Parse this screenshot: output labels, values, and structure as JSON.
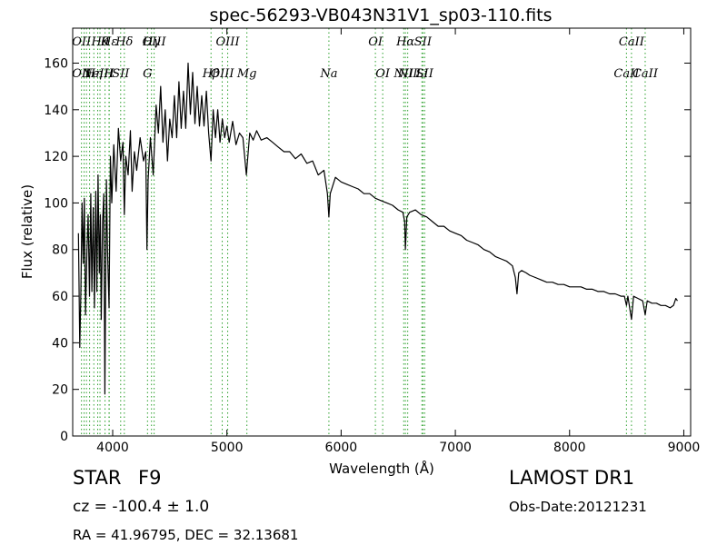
{
  "chart_data": {
    "type": "line",
    "title": "spec-56293-VB043N31V1_sp03-110.fits",
    "xlabel": "Wavelength (Å)",
    "ylabel": "Flux (relative)",
    "xlim": [
      3650,
      9060
    ],
    "ylim": [
      0,
      175
    ],
    "xticks": [
      4000,
      5000,
      6000,
      7000,
      8000,
      9000
    ],
    "yticks": [
      0,
      20,
      40,
      60,
      80,
      100,
      120,
      140,
      160
    ],
    "grid": false,
    "line_color": "#000000",
    "marker_color": "#2ca02c",
    "series": [
      {
        "points": [
          [
            3700,
            87
          ],
          [
            3712,
            38
          ],
          [
            3722,
            62
          ],
          [
            3732,
            100
          ],
          [
            3742,
            74
          ],
          [
            3752,
            102
          ],
          [
            3762,
            52
          ],
          [
            3775,
            80
          ],
          [
            3785,
            95
          ],
          [
            3797,
            60
          ],
          [
            3808,
            104
          ],
          [
            3818,
            62
          ],
          [
            3830,
            98
          ],
          [
            3840,
            55
          ],
          [
            3852,
            105
          ],
          [
            3862,
            62
          ],
          [
            3872,
            112
          ],
          [
            3883,
            70
          ],
          [
            3892,
            95
          ],
          [
            3900,
            50
          ],
          [
            3912,
            92
          ],
          [
            3922,
            104
          ],
          [
            3932,
            18
          ],
          [
            3945,
            110
          ],
          [
            3955,
            80
          ],
          [
            3968,
            55
          ],
          [
            3980,
            120
          ],
          [
            3992,
            100
          ],
          [
            4010,
            125
          ],
          [
            4030,
            105
          ],
          [
            4050,
            132
          ],
          [
            4070,
            118
          ],
          [
            4090,
            126
          ],
          [
            4102,
            95
          ],
          [
            4115,
            120
          ],
          [
            4135,
            112
          ],
          [
            4155,
            131
          ],
          [
            4170,
            105
          ],
          [
            4190,
            122
          ],
          [
            4210,
            114
          ],
          [
            4240,
            128
          ],
          [
            4270,
            118
          ],
          [
            4290,
            122
          ],
          [
            4300,
            80
          ],
          [
            4310,
            110
          ],
          [
            4330,
            128
          ],
          [
            4355,
            112
          ],
          [
            4380,
            142
          ],
          [
            4400,
            130
          ],
          [
            4420,
            150
          ],
          [
            4440,
            126
          ],
          [
            4460,
            140
          ],
          [
            4480,
            118
          ],
          [
            4500,
            136
          ],
          [
            4520,
            128
          ],
          [
            4540,
            146
          ],
          [
            4560,
            128
          ],
          [
            4580,
            152
          ],
          [
            4600,
            132
          ],
          [
            4620,
            148
          ],
          [
            4640,
            132
          ],
          [
            4660,
            160
          ],
          [
            4680,
            138
          ],
          [
            4700,
            156
          ],
          [
            4720,
            134
          ],
          [
            4740,
            150
          ],
          [
            4760,
            133
          ],
          [
            4780,
            146
          ],
          [
            4800,
            133
          ],
          [
            4820,
            148
          ],
          [
            4840,
            130
          ],
          [
            4861,
            118
          ],
          [
            4880,
            140
          ],
          [
            4900,
            128
          ],
          [
            4920,
            140
          ],
          [
            4940,
            126
          ],
          [
            4960,
            136
          ],
          [
            4980,
            128
          ],
          [
            5000,
            133
          ],
          [
            5020,
            126
          ],
          [
            5050,
            135
          ],
          [
            5080,
            125
          ],
          [
            5110,
            130
          ],
          [
            5140,
            128
          ],
          [
            5170,
            112
          ],
          [
            5200,
            130
          ],
          [
            5230,
            127
          ],
          [
            5260,
            131
          ],
          [
            5300,
            127
          ],
          [
            5350,
            128
          ],
          [
            5400,
            126
          ],
          [
            5450,
            124
          ],
          [
            5500,
            122
          ],
          [
            5550,
            122
          ],
          [
            5600,
            119
          ],
          [
            5650,
            121
          ],
          [
            5700,
            117
          ],
          [
            5750,
            118
          ],
          [
            5800,
            112
          ],
          [
            5850,
            114
          ],
          [
            5880,
            104
          ],
          [
            5893,
            94
          ],
          [
            5905,
            104
          ],
          [
            5950,
            111
          ],
          [
            6000,
            109
          ],
          [
            6050,
            108
          ],
          [
            6100,
            107
          ],
          [
            6150,
            106
          ],
          [
            6200,
            104
          ],
          [
            6250,
            104
          ],
          [
            6300,
            102
          ],
          [
            6350,
            101
          ],
          [
            6400,
            100
          ],
          [
            6450,
            99
          ],
          [
            6500,
            97
          ],
          [
            6540,
            96
          ],
          [
            6556,
            92
          ],
          [
            6563,
            80
          ],
          [
            6575,
            94
          ],
          [
            6600,
            96
          ],
          [
            6650,
            97
          ],
          [
            6700,
            95
          ],
          [
            6750,
            94
          ],
          [
            6800,
            92
          ],
          [
            6850,
            90
          ],
          [
            6900,
            90
          ],
          [
            6950,
            88
          ],
          [
            7000,
            87
          ],
          [
            7050,
            86
          ],
          [
            7100,
            84
          ],
          [
            7150,
            83
          ],
          [
            7200,
            82
          ],
          [
            7250,
            80
          ],
          [
            7300,
            79
          ],
          [
            7350,
            77
          ],
          [
            7400,
            76
          ],
          [
            7450,
            75
          ],
          [
            7500,
            73
          ],
          [
            7525,
            68
          ],
          [
            7540,
            61
          ],
          [
            7555,
            70
          ],
          [
            7580,
            71
          ],
          [
            7620,
            70
          ],
          [
            7650,
            69
          ],
          [
            7700,
            68
          ],
          [
            7750,
            67
          ],
          [
            7800,
            66
          ],
          [
            7850,
            66
          ],
          [
            7900,
            65
          ],
          [
            7950,
            65
          ],
          [
            8000,
            64
          ],
          [
            8050,
            64
          ],
          [
            8100,
            64
          ],
          [
            8150,
            63
          ],
          [
            8200,
            63
          ],
          [
            8250,
            62
          ],
          [
            8300,
            62
          ],
          [
            8350,
            61
          ],
          [
            8400,
            61
          ],
          [
            8450,
            60
          ],
          [
            8480,
            60
          ],
          [
            8498,
            56
          ],
          [
            8510,
            60
          ],
          [
            8542,
            50
          ],
          [
            8560,
            60
          ],
          [
            8600,
            59
          ],
          [
            8640,
            58
          ],
          [
            8662,
            52
          ],
          [
            8680,
            58
          ],
          [
            8720,
            57
          ],
          [
            8760,
            57
          ],
          [
            8800,
            56
          ],
          [
            8840,
            56
          ],
          [
            8880,
            55
          ],
          [
            8910,
            56
          ],
          [
            8930,
            59
          ],
          [
            8945,
            58
          ]
        ]
      }
    ],
    "lines": [
      {
        "x": 3727,
        "top": "OII",
        "bottom": "OII"
      },
      {
        "x": 3750,
        "top": "",
        "bottom": ""
      },
      {
        "x": 3771,
        "top": "",
        "bottom": ""
      },
      {
        "x": 3798,
        "top": "",
        "bottom": ""
      },
      {
        "x": 3835,
        "top": "",
        "bottom": "Hη"
      },
      {
        "x": 3869,
        "top": "",
        "bottom": "NeIII"
      },
      {
        "x": 3889,
        "top": "Hθ",
        "bottom": ""
      },
      {
        "x": 3933,
        "top": "K",
        "bottom": ""
      },
      {
        "x": 3968,
        "top": "",
        "bottom": "H"
      },
      {
        "x": 3970,
        "top": "Hε",
        "bottom": ""
      },
      {
        "x": 4070,
        "top": "",
        "bottom": "SII"
      },
      {
        "x": 4102,
        "top": "Hδ",
        "bottom": ""
      },
      {
        "x": 4305,
        "top": "",
        "bottom": "G"
      },
      {
        "x": 4340,
        "top": "Hγ",
        "bottom": ""
      },
      {
        "x": 4363,
        "top": "OIII",
        "bottom": ""
      },
      {
        "x": 4861,
        "top": "",
        "bottom": "Hβ"
      },
      {
        "x": 4959,
        "top": "",
        "bottom": "OIII"
      },
      {
        "x": 5007,
        "top": "OIII",
        "bottom": ""
      },
      {
        "x": 5175,
        "top": "",
        "bottom": "Mg"
      },
      {
        "x": 5893,
        "top": "",
        "bottom": "Na"
      },
      {
        "x": 6300,
        "top": "OI",
        "bottom": ""
      },
      {
        "x": 6364,
        "top": "",
        "bottom": "OI"
      },
      {
        "x": 6548,
        "top": "",
        "bottom": "NII"
      },
      {
        "x": 6563,
        "top": "Hα",
        "bottom": ""
      },
      {
        "x": 6583,
        "top": "",
        "bottom": "NII"
      },
      {
        "x": 6707,
        "top": "",
        "bottom": "Li"
      },
      {
        "x": 6716,
        "top": "SII",
        "bottom": ""
      },
      {
        "x": 6731,
        "top": "",
        "bottom": "SII"
      },
      {
        "x": 8498,
        "top": "",
        "bottom": "CaII"
      },
      {
        "x": 8542,
        "top": "CaII",
        "bottom": ""
      },
      {
        "x": 8662,
        "top": "",
        "bottom": "CaII"
      }
    ]
  },
  "info": {
    "object_type": "STAR",
    "subclass": "F9",
    "redshift": "cz = -100.4  ± 1.0",
    "coords": "RA = 41.96795, DEC = 32.13681",
    "survey": "LAMOST DR1",
    "obs_date": "Obs-Date:20121231"
  }
}
